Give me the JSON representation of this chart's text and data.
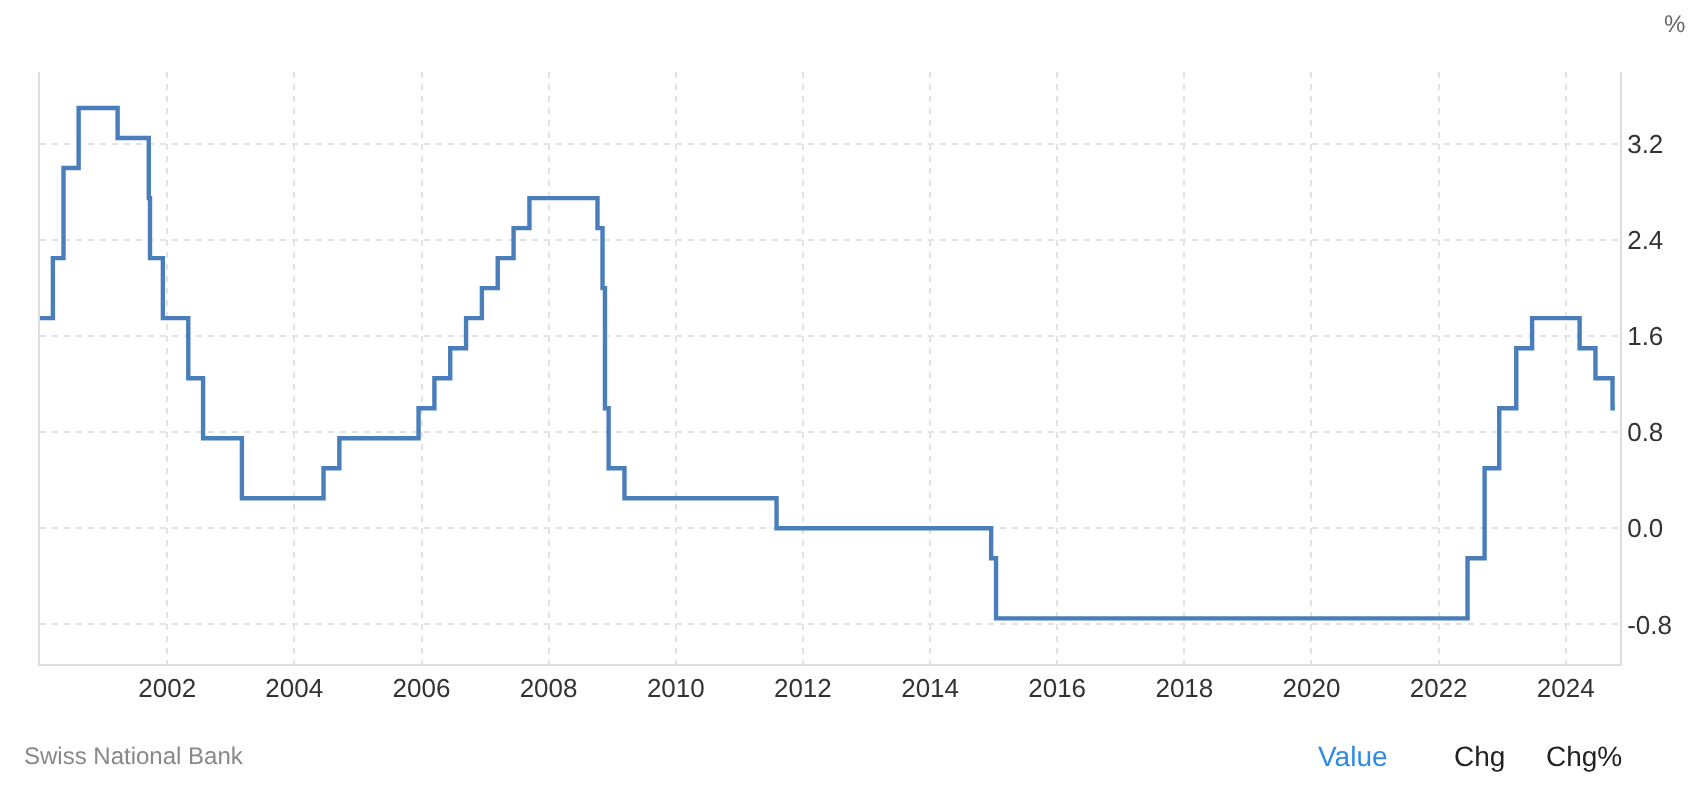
{
  "chart_data": {
    "type": "step",
    "ylabel": "%",
    "x": [
      "2000-01-01",
      "2000-03-15",
      "2000-05-15",
      "2000-08-10",
      "2001-03-22",
      "2001-09-17",
      "2001-09-24",
      "2001-12-07",
      "2002-05-02",
      "2002-07-26",
      "2003-03-06",
      "2004-06-17",
      "2004-09-16",
      "2005-12-15",
      "2006-03-16",
      "2006-06-15",
      "2006-09-14",
      "2006-12-14",
      "2007-03-15",
      "2007-06-14",
      "2007-09-13",
      "2008-10-08",
      "2008-11-06",
      "2008-11-20",
      "2008-12-11",
      "2009-03-12",
      "2011-08-03",
      "2014-12-18",
      "2015-01-15",
      "2022-06-16",
      "2022-09-22",
      "2022-12-15",
      "2023-03-23",
      "2023-06-22",
      "2024-03-21",
      "2024-06-20",
      "2024-09-26",
      "2024-10-10"
    ],
    "series": [
      {
        "color": "#4a7ebb",
        "values": [
          1.75,
          2.25,
          3.0,
          3.5,
          3.25,
          2.75,
          2.25,
          1.75,
          1.25,
          0.75,
          0.25,
          0.5,
          0.75,
          1.0,
          1.25,
          1.5,
          1.75,
          2.0,
          2.25,
          2.5,
          2.75,
          2.5,
          2.0,
          1.0,
          0.5,
          0.25,
          0.0,
          -0.25,
          -0.75,
          -0.25,
          0.5,
          1.0,
          1.5,
          1.75,
          1.5,
          1.25,
          1.0,
          1.0
        ]
      }
    ],
    "xlim": [
      "2000-01-01",
      "2024-11-08"
    ],
    "xticks": [
      "2002",
      "2004",
      "2006",
      "2008",
      "2010",
      "2012",
      "2014",
      "2016",
      "2018",
      "2020",
      "2022",
      "2024"
    ],
    "ylim": [
      -1.13,
      3.8
    ],
    "yticks": [
      3.2,
      2.4,
      1.6,
      0.8,
      {
        "value": 0,
        "label": "0.0"
      },
      -0.8
    ],
    "grid": true,
    "annotations": [
      "Swiss National Bank",
      "Value",
      "Chg",
      "Chg%"
    ]
  }
}
